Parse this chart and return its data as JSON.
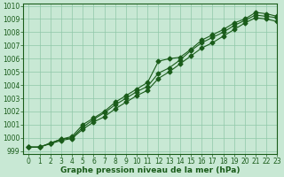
{
  "xlabel": "Graphe pression niveau de la mer (hPa)",
  "bg_color": "#c8e8d4",
  "grid_color": "#8fc8a8",
  "line_color": "#1a5c1a",
  "xlim": [
    -0.5,
    23
  ],
  "ylim": [
    998.8,
    1010.2
  ],
  "yticks": [
    999,
    1000,
    1001,
    1002,
    1003,
    1004,
    1005,
    1006,
    1007,
    1008,
    1009,
    1010
  ],
  "xticks": [
    0,
    1,
    2,
    3,
    4,
    5,
    6,
    7,
    8,
    9,
    10,
    11,
    12,
    13,
    14,
    15,
    16,
    17,
    18,
    19,
    20,
    21,
    22,
    23
  ],
  "series1": [
    999.3,
    999.3,
    999.6,
    999.9,
    1000.1,
    1001.0,
    1001.5,
    1002.0,
    1002.7,
    1003.2,
    1003.7,
    1004.2,
    1005.8,
    1006.0,
    1006.1,
    1006.7,
    1007.4,
    1007.8,
    1008.2,
    1008.7,
    1009.0,
    1009.5,
    1009.4,
    1009.2
  ],
  "series2": [
    999.3,
    999.3,
    999.6,
    999.9,
    1000.0,
    1000.8,
    1001.4,
    1001.9,
    1002.5,
    1003.0,
    1003.5,
    1003.9,
    1004.9,
    1005.3,
    1005.9,
    1006.6,
    1007.2,
    1007.6,
    1008.0,
    1008.5,
    1008.9,
    1009.3,
    1009.2,
    1009.1
  ],
  "series3": [
    999.3,
    999.3,
    999.55,
    999.8,
    999.95,
    1000.65,
    1001.2,
    1001.6,
    1002.2,
    1002.7,
    1003.2,
    1003.6,
    1004.5,
    1005.0,
    1005.6,
    1006.2,
    1006.8,
    1007.2,
    1007.7,
    1008.2,
    1008.7,
    1009.1,
    1009.0,
    1008.8
  ],
  "tick_fontsize": 5.5,
  "xlabel_fontsize": 6.5
}
